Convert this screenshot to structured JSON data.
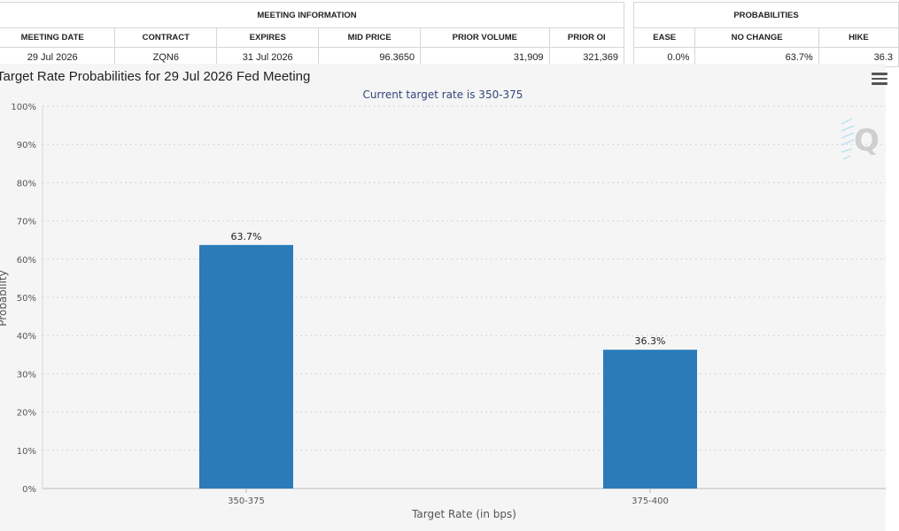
{
  "meeting_info": {
    "group_label": "MEETING INFORMATION",
    "headers": [
      "MEETING DATE",
      "CONTRACT",
      "EXPIRES",
      "MID PRICE",
      "PRIOR VOLUME",
      "PRIOR OI"
    ],
    "row": [
      "29 Jul 2026",
      "ZQN6",
      "31 Jul 2026",
      "96.3650",
      "31,909",
      "321,369"
    ]
  },
  "probabilities": {
    "group_label": "PROBABILITIES",
    "headers": [
      "EASE",
      "NO CHANGE",
      "HIKE"
    ],
    "row": [
      "0.0%",
      "63.7%",
      "36.3"
    ]
  },
  "chart_data": {
    "type": "bar",
    "title": "Target Rate Probabilities for 29 Jul 2026 Fed Meeting",
    "subtitle": "Current target rate is 350-375",
    "categories": [
      "350-375",
      "375-400"
    ],
    "values": [
      63.7,
      36.3
    ],
    "data_labels": [
      "63.7%",
      "36.3%"
    ],
    "xlabel": "Target Rate (in bps)",
    "ylabel": "Probability",
    "ylim": [
      0,
      100
    ],
    "yticks": [
      0,
      10,
      20,
      30,
      40,
      50,
      60,
      70,
      80,
      90,
      100
    ],
    "ytick_labels": [
      "0%",
      "10%",
      "20%",
      "30%",
      "40%",
      "50%",
      "60%",
      "70%",
      "80%",
      "90%",
      "100%"
    ],
    "grid": true,
    "bar_color": "#2b7bb9"
  }
}
